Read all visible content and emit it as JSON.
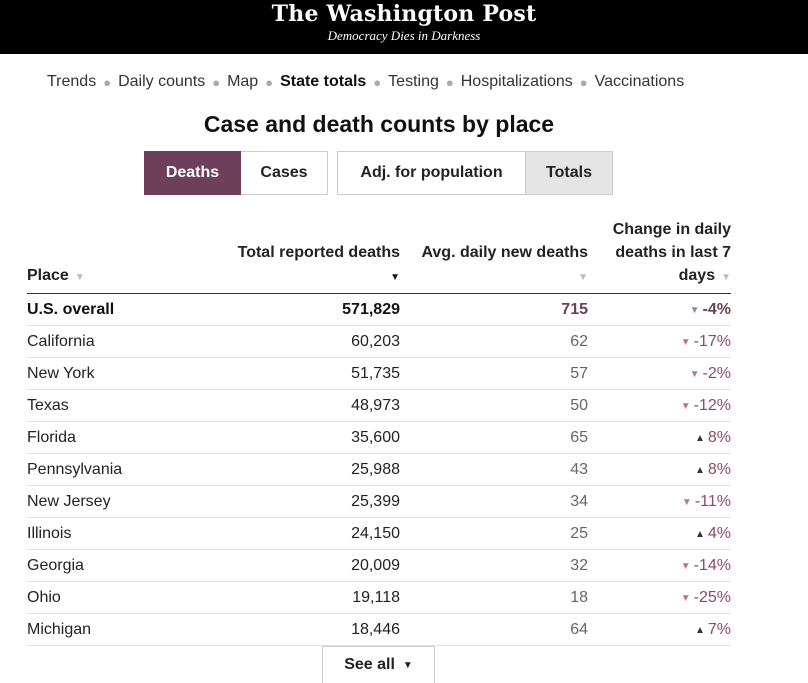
{
  "header": {
    "logo": "The Washington Post",
    "tagline": "Democracy Dies in Darkness"
  },
  "nav": {
    "items": [
      "Trends",
      "Daily counts",
      "Map",
      "State totals",
      "Testing",
      "Hospitalizations",
      "Vaccinations"
    ],
    "active": "State totals"
  },
  "page": {
    "title": "Case and death counts by place"
  },
  "toggles": {
    "metric": [
      "Deaths",
      "Cases"
    ],
    "metric_selected": "Deaths",
    "mode": [
      "Adj. for population",
      "Totals"
    ],
    "mode_selected": "Totals"
  },
  "table": {
    "headers": {
      "place": "Place",
      "total": "Total reported deaths",
      "avg": "Avg. daily new deaths",
      "change_line1": "Change in daily",
      "change_line2": "deaths in last 7",
      "change_line3": "days"
    },
    "rows": [
      {
        "place": "U.S. overall",
        "total": "571,829",
        "avg": "715",
        "change": "-4%",
        "dir": "down"
      },
      {
        "place": "California",
        "total": "60,203",
        "avg": "62",
        "change": "-17%",
        "dir": "down"
      },
      {
        "place": "New York",
        "total": "51,735",
        "avg": "57",
        "change": "-2%",
        "dir": "down"
      },
      {
        "place": "Texas",
        "total": "48,973",
        "avg": "50",
        "change": "-12%",
        "dir": "down"
      },
      {
        "place": "Florida",
        "total": "35,600",
        "avg": "65",
        "change": "8%",
        "dir": "up"
      },
      {
        "place": "Pennsylvania",
        "total": "25,988",
        "avg": "43",
        "change": "8%",
        "dir": "up"
      },
      {
        "place": "New Jersey",
        "total": "25,399",
        "avg": "34",
        "change": "-11%",
        "dir": "down"
      },
      {
        "place": "Illinois",
        "total": "24,150",
        "avg": "25",
        "change": "4%",
        "dir": "up"
      },
      {
        "place": "Georgia",
        "total": "20,009",
        "avg": "32",
        "change": "-14%",
        "dir": "down"
      },
      {
        "place": "Ohio",
        "total": "19,118",
        "avg": "18",
        "change": "-25%",
        "dir": "down"
      },
      {
        "place": "Michigan",
        "total": "18,446",
        "avg": "64",
        "change": "7%",
        "dir": "up"
      }
    ]
  },
  "see_all": {
    "label": "See all"
  },
  "icons": {
    "sort_caret": "caret-down-icon",
    "trend_down": "triangle-down-icon",
    "trend_up": "triangle-up-icon",
    "see_all_chevron": "chevron-down-icon"
  },
  "colors": {
    "masthead_bg": "#000000",
    "accent_purple": "#6d3f5b",
    "trend_down": "#b07898",
    "selected_gray": "#e5e5e5"
  }
}
